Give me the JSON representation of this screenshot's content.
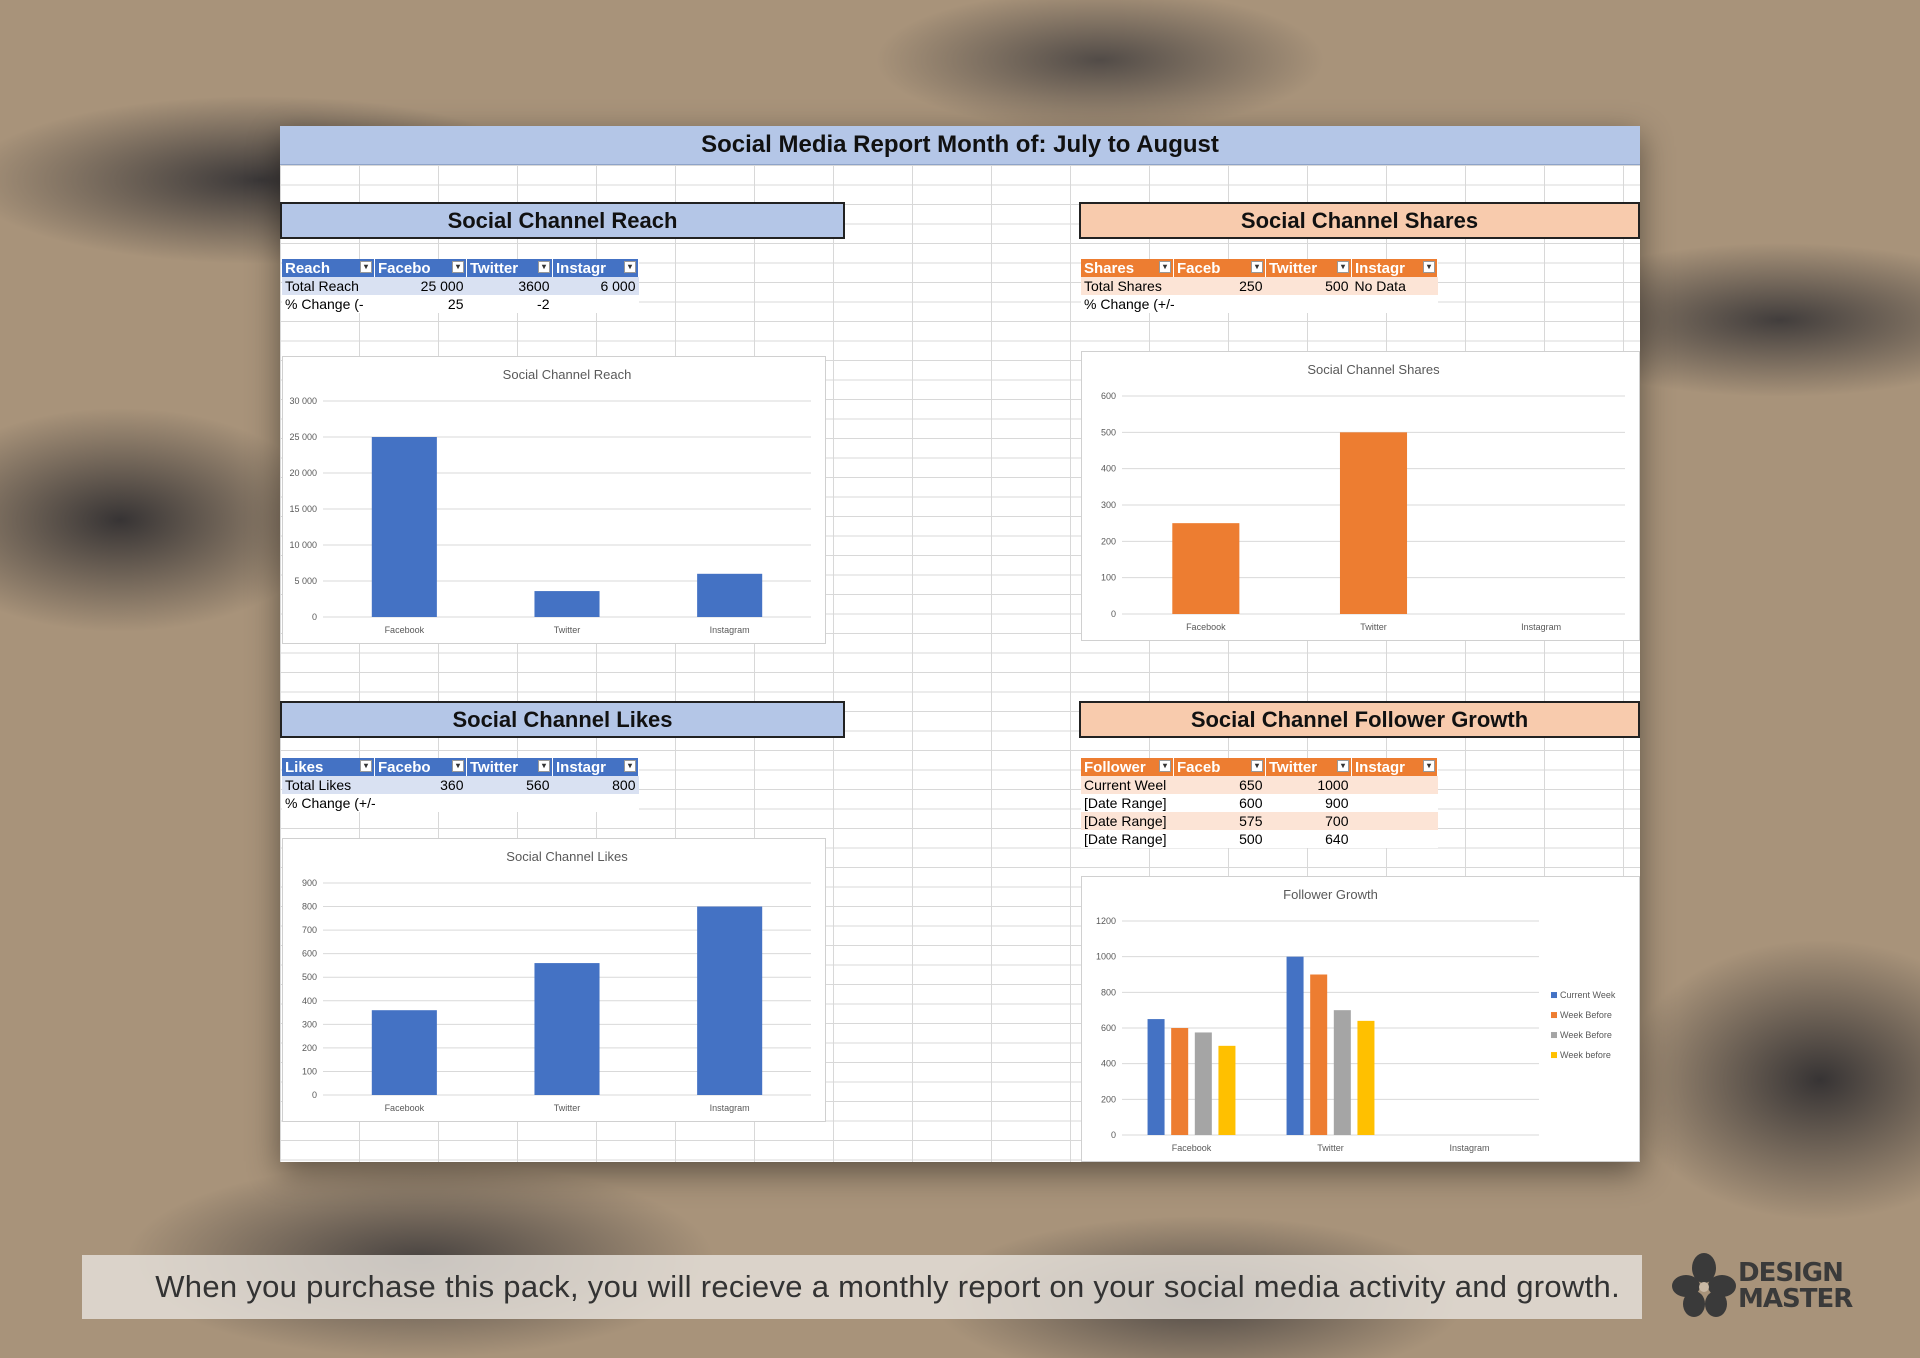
{
  "report_title": "Social Media Report Month of: July to August",
  "sections": {
    "reach": {
      "heading": "Social Channel Reach",
      "headers": [
        "Reach",
        "Facebo",
        "Twitter",
        "Instagr"
      ],
      "rows": [
        [
          "Total Reach",
          "25 000",
          "3600",
          "6 000"
        ],
        [
          "% Change (-",
          "25",
          "-2",
          ""
        ]
      ]
    },
    "shares": {
      "heading": "Social Channel Shares",
      "headers": [
        "Shares",
        "Faceb",
        "Twitter",
        "Instagr"
      ],
      "rows": [
        [
          "Total Shares",
          "250",
          "500",
          "No Data"
        ],
        [
          "% Change (+/-)",
          "",
          "",
          ""
        ]
      ]
    },
    "likes": {
      "heading": "Social Channel Likes",
      "headers": [
        "Likes",
        "Facebo",
        "Twitter",
        "Instagr"
      ],
      "rows": [
        [
          "Total Likes",
          "360",
          "560",
          "800"
        ],
        [
          "% Change (+/-)",
          "",
          "",
          ""
        ]
      ]
    },
    "followers": {
      "heading": "Social Channel Follower Growth",
      "headers": [
        "Follower",
        "Faceb",
        "Twitter",
        "Instagr"
      ],
      "rows": [
        [
          "Current Weel",
          "650",
          "1000",
          ""
        ],
        [
          "[Date Range]",
          "600",
          "900",
          ""
        ],
        [
          "[Date Range]",
          "575",
          "700",
          ""
        ],
        [
          "[Date Range]",
          "500",
          "640",
          ""
        ]
      ]
    }
  },
  "colors": {
    "blue": "#4472c4",
    "orange": "#ed7d31",
    "gray": "#a5a5a5",
    "gold": "#ffc000",
    "blue_header": "#b4c6e7",
    "orange_header": "#f8cbad"
  },
  "chart_data": [
    {
      "id": "reach",
      "type": "bar",
      "title": "Social Channel Reach",
      "categories": [
        "Facebook",
        "Twitter",
        "Instagram"
      ],
      "values": [
        25000,
        3600,
        6000
      ],
      "ylim": [
        0,
        30000
      ],
      "yticks": [
        0,
        5000,
        10000,
        15000,
        20000,
        25000,
        30000
      ],
      "ytick_labels": [
        "0",
        "5 000",
        "10 000",
        "15 000",
        "20 000",
        "25 000",
        "30 000"
      ],
      "color": "#4472c4",
      "grid": true
    },
    {
      "id": "shares",
      "type": "bar",
      "title": "Social Channel Shares",
      "categories": [
        "Facebook",
        "Twitter",
        "Instagram"
      ],
      "values": [
        250,
        500,
        null
      ],
      "ylim": [
        0,
        600
      ],
      "yticks": [
        0,
        100,
        200,
        300,
        400,
        500,
        600
      ],
      "ytick_labels": [
        "0",
        "100",
        "200",
        "300",
        "400",
        "500",
        "600"
      ],
      "color": "#ed7d31",
      "grid": true
    },
    {
      "id": "likes",
      "type": "bar",
      "title": "Social Channel Likes",
      "categories": [
        "Facebook",
        "Twitter",
        "Instagram"
      ],
      "values": [
        360,
        560,
        800
      ],
      "ylim": [
        0,
        900
      ],
      "yticks": [
        0,
        100,
        200,
        300,
        400,
        500,
        600,
        700,
        800,
        900
      ],
      "ytick_labels": [
        "0",
        "100",
        "200",
        "300",
        "400",
        "500",
        "600",
        "700",
        "800",
        "900"
      ],
      "color": "#4472c4",
      "grid": true
    },
    {
      "id": "followers",
      "type": "bar",
      "title": "Follower Growth",
      "categories": [
        "Facebook",
        "Twitter",
        "Instagram"
      ],
      "series": [
        {
          "name": "Current Week",
          "values": [
            650,
            1000,
            null
          ],
          "color": "#4472c4"
        },
        {
          "name": "Week Before",
          "values": [
            600,
            900,
            null
          ],
          "color": "#ed7d31"
        },
        {
          "name": "Week Before",
          "values": [
            575,
            700,
            null
          ],
          "color": "#a5a5a5"
        },
        {
          "name": "Week before",
          "values": [
            500,
            640,
            null
          ],
          "color": "#ffc000"
        }
      ],
      "ylim": [
        0,
        1200
      ],
      "yticks": [
        0,
        200,
        400,
        600,
        800,
        1000,
        1200
      ],
      "ytick_labels": [
        "0",
        "200",
        "400",
        "600",
        "800",
        "1000",
        "1200"
      ],
      "legend": "right",
      "grid": true
    }
  ],
  "caption": "When you purchase this pack, you will recieve a monthly report on your social media activity and growth.",
  "logo": {
    "line1": "DESIGN",
    "line2": "MASTER"
  }
}
